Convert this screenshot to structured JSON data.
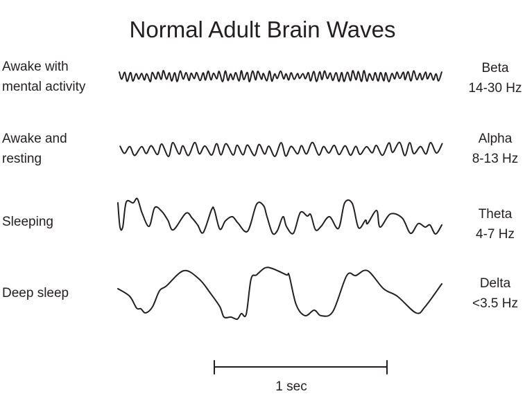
{
  "title": "Normal Adult Brain Waves",
  "rows": [
    {
      "state": [
        "Awake with",
        "mental activity"
      ],
      "wave": "Beta",
      "freq": "14-30 Hz"
    },
    {
      "state": [
        "Awake and",
        "resting"
      ],
      "wave": "Alpha",
      "freq": "8-13 Hz"
    },
    {
      "state": [
        "Sleeping"
      ],
      "wave": "Theta",
      "freq": "4-7 Hz"
    },
    {
      "state": [
        "Deep sleep"
      ],
      "wave": "Delta",
      "freq": "<3.5 Hz"
    }
  ],
  "scale_bar": {
    "label": "1 sec"
  },
  "colors": {
    "ink": "#231f20"
  }
}
